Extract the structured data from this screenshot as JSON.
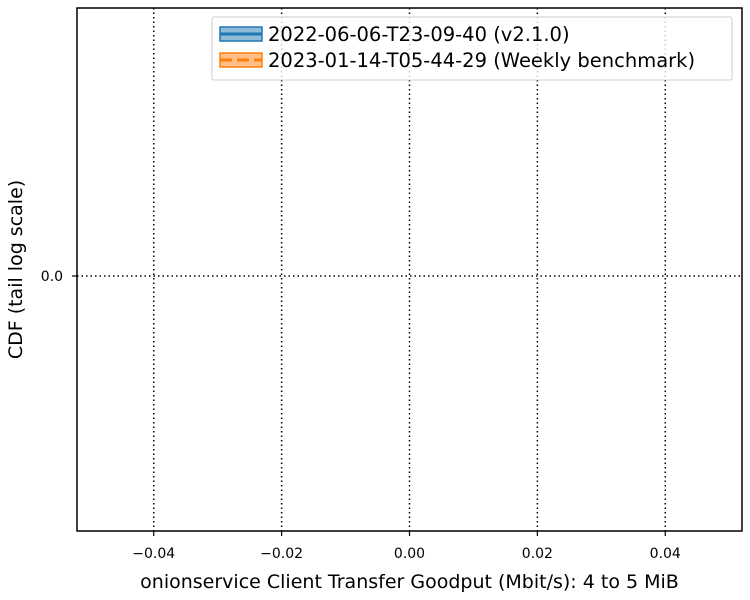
{
  "chart_data": {
    "type": "line",
    "title": "",
    "xlabel": "onionservice Client Transfer Goodput (Mbit/s): 4 to 5 MiB",
    "ylabel": "CDF (tail log scale)",
    "xlim": [
      -0.052,
      0.052
    ],
    "x_ticks": [
      -0.04,
      -0.02,
      0.0,
      0.02,
      0.04
    ],
    "x_tick_labels": [
      "−0.04",
      "−0.02",
      "0.00",
      "0.02",
      "0.04"
    ],
    "y_ticks": [
      0.0
    ],
    "y_tick_labels": [
      "0.0"
    ],
    "grid": true,
    "grid_style": "dotted",
    "legend_position": "top-right",
    "series": [
      {
        "name": "2022-06-06-T23-09-40 (v2.1.0)",
        "color": "#1f77b4",
        "line_style": "solid",
        "x": [],
        "y": []
      },
      {
        "name": "2023-01-14-T05-44-29 (Weekly benchmark)",
        "color": "#ff7f0e",
        "line_style": "dashed",
        "x": [],
        "y": []
      }
    ]
  }
}
